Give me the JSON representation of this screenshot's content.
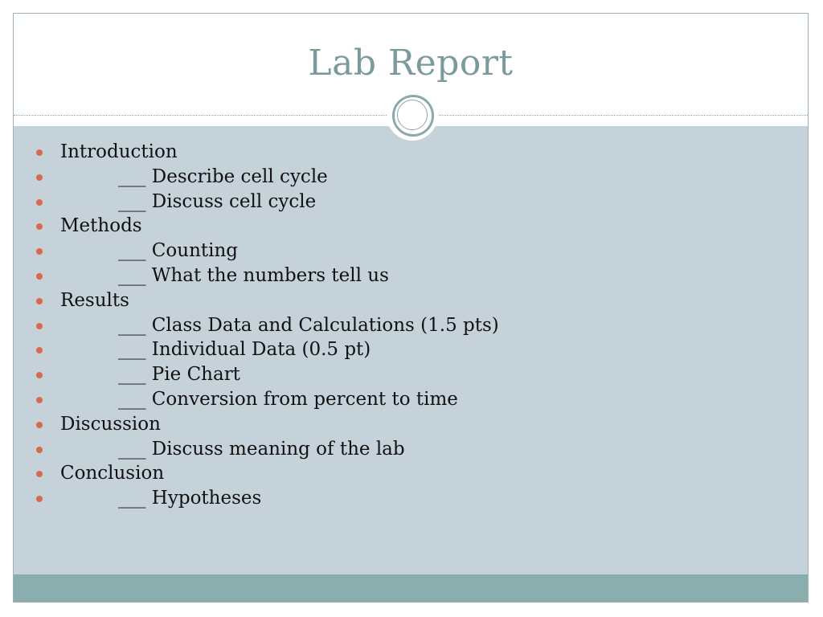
{
  "slide": {
    "title": "Lab Report",
    "bullets": [
      {
        "text": "Introduction",
        "indent": false
      },
      {
        "text": "___ Describe cell cycle",
        "indent": true
      },
      {
        "text": "___ Discuss cell cycle",
        "indent": true
      },
      {
        "text": "Methods",
        "indent": false
      },
      {
        "text": "___ Counting",
        "indent": true
      },
      {
        "text": "___ What the numbers tell us",
        "indent": true
      },
      {
        "text": "Results",
        "indent": false
      },
      {
        "text": "___ Class Data and Calculations (1.5 pts)",
        "indent": true
      },
      {
        "text": "___ Individual Data (0.5 pt)",
        "indent": true
      },
      {
        "text": "___ Pie Chart",
        "indent": true
      },
      {
        "text": "___ Conversion from percent to time",
        "indent": true
      },
      {
        "text": "Discussion",
        "indent": false
      },
      {
        "text": "___ Discuss meaning of the lab",
        "indent": true
      },
      {
        "text": "Conclusion",
        "indent": false
      },
      {
        "text": "___ Hypotheses",
        "indent": true
      }
    ]
  },
  "colors": {
    "title": "#7a9a9c",
    "content_background": "#c6d2d9",
    "footer_band": "#8aadad",
    "bullet_marker": "#d56b4c",
    "ornament_ring": "#8aa9ab"
  }
}
